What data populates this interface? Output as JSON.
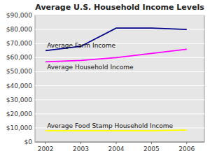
{
  "chart_data": {
    "type": "line",
    "title": "Average U.S. Household Income Levels",
    "x": [
      2002,
      2003,
      2004,
      2005,
      2006
    ],
    "series": [
      {
        "name": "Average Farm Income",
        "color": "#00008B",
        "values": [
          65000,
          68000,
          81000,
          81000,
          80000
        ]
      },
      {
        "name": "Average Household Income",
        "color": "#FF00FF",
        "values": [
          57000,
          58000,
          60000,
          63000,
          66000
        ]
      },
      {
        "name": "Average Food Stamp Household Income",
        "color": "#FFFF00",
        "values": [
          8000,
          8000,
          8000,
          8000,
          8500
        ]
      }
    ],
    "xlim": [
      2001.7,
      2006.5
    ],
    "xticks": [
      2002,
      2003,
      2004,
      2005,
      2006
    ],
    "ylim": [
      0,
      90000
    ],
    "yticks": [
      {
        "value": 0,
        "label": "$0"
      },
      {
        "value": 10000,
        "label": "$10,000"
      },
      {
        "value": 20000,
        "label": "$20,000"
      },
      {
        "value": 30000,
        "label": "$30,000"
      },
      {
        "value": 40000,
        "label": "$40,000"
      },
      {
        "value": 50000,
        "label": "$50,000"
      },
      {
        "value": 60000,
        "label": "$60,000"
      },
      {
        "value": 70000,
        "label": "$70,000"
      },
      {
        "value": 80000,
        "label": "$80,000"
      },
      {
        "value": 90000,
        "label": "$90,000"
      }
    ],
    "grid": true
  }
}
